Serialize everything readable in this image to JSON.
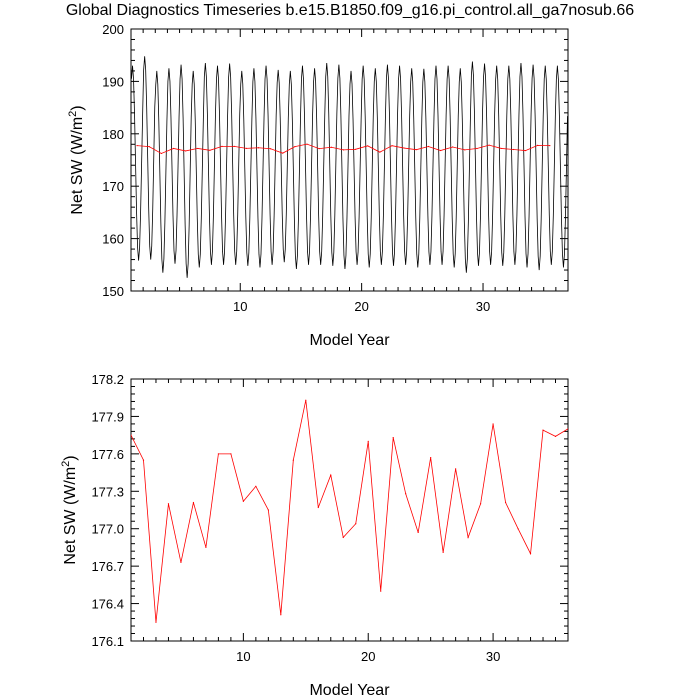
{
  "title": "Global Diagnostics Timeseries b.e15.B1850.f09_g16.pi_control.all_ga7nosub.66",
  "colors": {
    "monthly": "#000000",
    "annual": "#ff0000"
  },
  "chart_data": [
    {
      "type": "line",
      "title": "Global Diagnostics Timeseries b.e15.B1850.f09_g16.pi_control.all_ga7nosub.66",
      "xlabel": "Model Year",
      "ylabel_main": "Net SW (W/m",
      "ylabel_sup": "2",
      "ylabel_end": ")",
      "xlim": [
        1,
        37
      ],
      "ylim": [
        150,
        200
      ],
      "xticks": [
        10,
        20,
        30
      ],
      "xtick_labels": [
        "10",
        "20",
        "30"
      ],
      "yticks": [
        150,
        160,
        170,
        180,
        190,
        200
      ],
      "ytick_labels": [
        "150",
        "160",
        "170",
        "180",
        "190",
        "200"
      ],
      "grid": false,
      "series": [
        {
          "color": "#000000",
          "annual_max": [
            193.0,
            194.8,
            192.0,
            192.5,
            193.2,
            192.0,
            193.5,
            193.0,
            193.4,
            192.0,
            192.5,
            193.0,
            192.2,
            192.0,
            193.0,
            192.5,
            193.5,
            193.2,
            192.0,
            193.0,
            192.5,
            193.2,
            193.0,
            192.5,
            192.4,
            193.0,
            193.0,
            192.5,
            193.8,
            193.4,
            193.0,
            193.0,
            193.5,
            193.2,
            193.0,
            193.0
          ],
          "annual_min": [
            155.8,
            156.0,
            153.5,
            155.2,
            152.5,
            154.5,
            155.0,
            155.0,
            155.0,
            154.8,
            154.5,
            155.0,
            155.5,
            154.2,
            155.0,
            155.0,
            154.8,
            154.2,
            155.0,
            154.5,
            155.0,
            154.8,
            155.0,
            154.5,
            155.0,
            155.0,
            154.5,
            153.5,
            154.8,
            155.0,
            154.8,
            155.0,
            154.5,
            154.0,
            155.0,
            154.5
          ],
          "min_month": 7
        },
        {
          "color": "#ff0000",
          "x": [
            1.5,
            2.5,
            3.5,
            4.5,
            5.5,
            6.5,
            7.5,
            8.5,
            9.5,
            10.5,
            11.5,
            12.5,
            13.5,
            14.5,
            15.5,
            16.5,
            17.5,
            18.5,
            19.5,
            20.5,
            21.5,
            22.5,
            23.5,
            24.5,
            25.5,
            26.5,
            27.5,
            28.5,
            29.5,
            30.5,
            31.5,
            32.5,
            33.5,
            34.5,
            35.5
          ],
          "values": [
            177.75,
            177.55,
            176.25,
            177.2,
            176.73,
            177.21,
            176.85,
            177.6,
            177.6,
            177.22,
            177.34,
            177.15,
            176.31,
            177.55,
            178.03,
            177.17,
            177.43,
            176.93,
            177.04,
            177.7,
            176.5,
            177.73,
            177.28,
            176.97,
            177.57,
            176.81,
            177.48,
            176.93,
            177.2,
            177.84,
            177.21,
            177.0,
            176.8,
            177.79,
            177.74
          ]
        }
      ]
    },
    {
      "type": "line",
      "xlabel": "Model Year",
      "ylabel_main": "Net SW (W/m",
      "ylabel_sup": "2",
      "ylabel_end": ")",
      "xlim": [
        1,
        36
      ],
      "ylim": [
        176.1,
        178.2
      ],
      "xticks": [
        10,
        20,
        30
      ],
      "xtick_labels": [
        "10",
        "20",
        "30"
      ],
      "yticks": [
        176.1,
        176.4,
        176.7,
        177.0,
        177.3,
        177.6,
        177.9,
        178.2
      ],
      "ytick_labels": [
        "176.1",
        "176.4",
        "176.7",
        "177.0",
        "177.3",
        "177.6",
        "177.9",
        "178.2"
      ],
      "grid": false,
      "series": [
        {
          "color": "#ff0000",
          "x": [
            1,
            2,
            3,
            4,
            5,
            6,
            7,
            8,
            9,
            10,
            11,
            12,
            13,
            14,
            15,
            16,
            17,
            18,
            19,
            20,
            21,
            22,
            23,
            24,
            25,
            26,
            27,
            28,
            29,
            30,
            31,
            32,
            33,
            34,
            35,
            36
          ],
          "values": [
            177.75,
            177.55,
            176.25,
            177.2,
            176.73,
            177.21,
            176.85,
            177.6,
            177.6,
            177.22,
            177.34,
            177.15,
            176.31,
            177.55,
            178.03,
            177.17,
            177.43,
            176.93,
            177.04,
            177.7,
            176.5,
            177.73,
            177.28,
            176.97,
            177.57,
            176.81,
            177.48,
            176.93,
            177.2,
            177.84,
            177.21,
            177.0,
            176.8,
            177.79,
            177.74,
            177.8
          ]
        }
      ]
    }
  ]
}
